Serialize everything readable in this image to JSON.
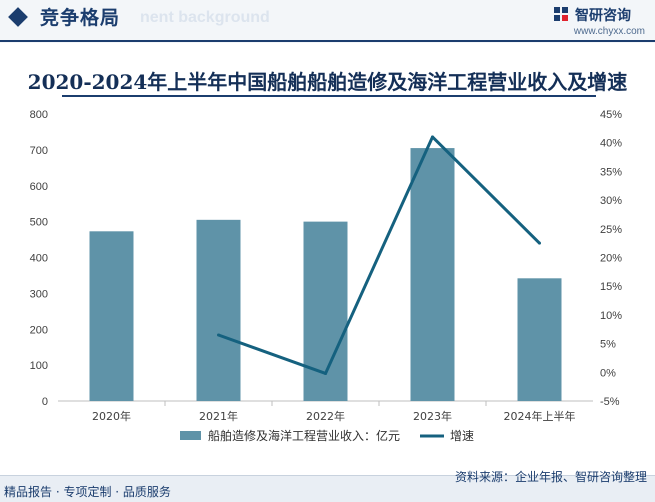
{
  "header": {
    "section_title": "竞争格局",
    "ghost_text": "nent background",
    "brand_name": "智研咨询",
    "brand_url": "www.chyxx.com"
  },
  "chart_data": {
    "type": "bar",
    "title": "2020-2024年上半年中国船舶船舶造修及海洋工程营业收入及增速",
    "categories": [
      "2020年",
      "2021年",
      "2022年",
      "2023年",
      "2024年上半年"
    ],
    "series": [
      {
        "name": "船舶造修及海洋工程营业收入：亿元",
        "type": "bar",
        "axis": "left",
        "values": [
          473,
          505,
          500,
          705,
          342
        ],
        "color": "#5f93a8"
      },
      {
        "name": "增速",
        "type": "line",
        "axis": "right",
        "values": [
          null,
          6.5,
          -0.2,
          41,
          22.5
        ],
        "color": "#15617f"
      }
    ],
    "y_left": {
      "min": 0,
      "max": 800,
      "ticks": [
        "0",
        "100",
        "200",
        "300",
        "400",
        "500",
        "600",
        "700",
        "800"
      ]
    },
    "y_right": {
      "min": -5,
      "max": 45,
      "ticks": [
        "-5%",
        "0%",
        "5%",
        "10%",
        "15%",
        "20%",
        "25%",
        "30%",
        "35%",
        "40%",
        "45%"
      ]
    },
    "legend_position": "bottom"
  },
  "footer": {
    "left_text": "精品报告 · 专项定制 · 品质服务",
    "source_text": "资料来源：企业年报、智研咨询整理"
  }
}
